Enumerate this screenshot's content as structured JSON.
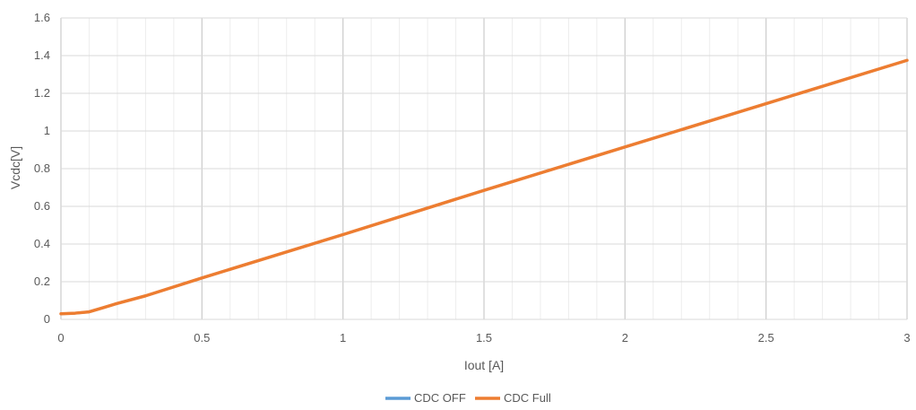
{
  "chart_data": {
    "type": "line",
    "title": "",
    "xlabel": "Iout [A]",
    "ylabel": "Vcdc[V]",
    "xlim": [
      0,
      3
    ],
    "ylim": [
      0,
      1.6
    ],
    "xticks": [
      0,
      0.5,
      1,
      1.5,
      2,
      2.5,
      3
    ],
    "xtick_labels": [
      "0",
      "0.5",
      "1",
      "1.5",
      "2",
      "2.5",
      "3"
    ],
    "yticks": [
      0,
      0.2,
      0.4,
      0.6,
      0.8,
      1,
      1.2,
      1.4,
      1.6
    ],
    "ytick_labels": [
      "0",
      "0.2",
      "0.4",
      "0.6",
      "0.8",
      "1",
      "1.2",
      "1.4",
      "1.6"
    ],
    "grid": true,
    "minor_grid": true,
    "legend_position": "bottom",
    "series": [
      {
        "name": "CDC OFF",
        "color": "#5B9BD5",
        "x": [
          0,
          0.05,
          0.1,
          0.15,
          0.2,
          0.3,
          0.5,
          1,
          1.5,
          2,
          2.5,
          3
        ],
        "y": [
          0.03,
          0.033,
          0.04,
          0.062,
          0.085,
          0.125,
          0.22,
          0.45,
          0.685,
          0.915,
          1.145,
          1.375
        ]
      },
      {
        "name": "CDC Full",
        "color": "#ED7D31",
        "x": [
          0,
          0.05,
          0.1,
          0.15,
          0.2,
          0.3,
          0.5,
          1,
          1.5,
          2,
          2.5,
          3
        ],
        "y": [
          0.03,
          0.033,
          0.04,
          0.062,
          0.085,
          0.125,
          0.22,
          0.45,
          0.685,
          0.915,
          1.145,
          1.375
        ]
      }
    ]
  }
}
